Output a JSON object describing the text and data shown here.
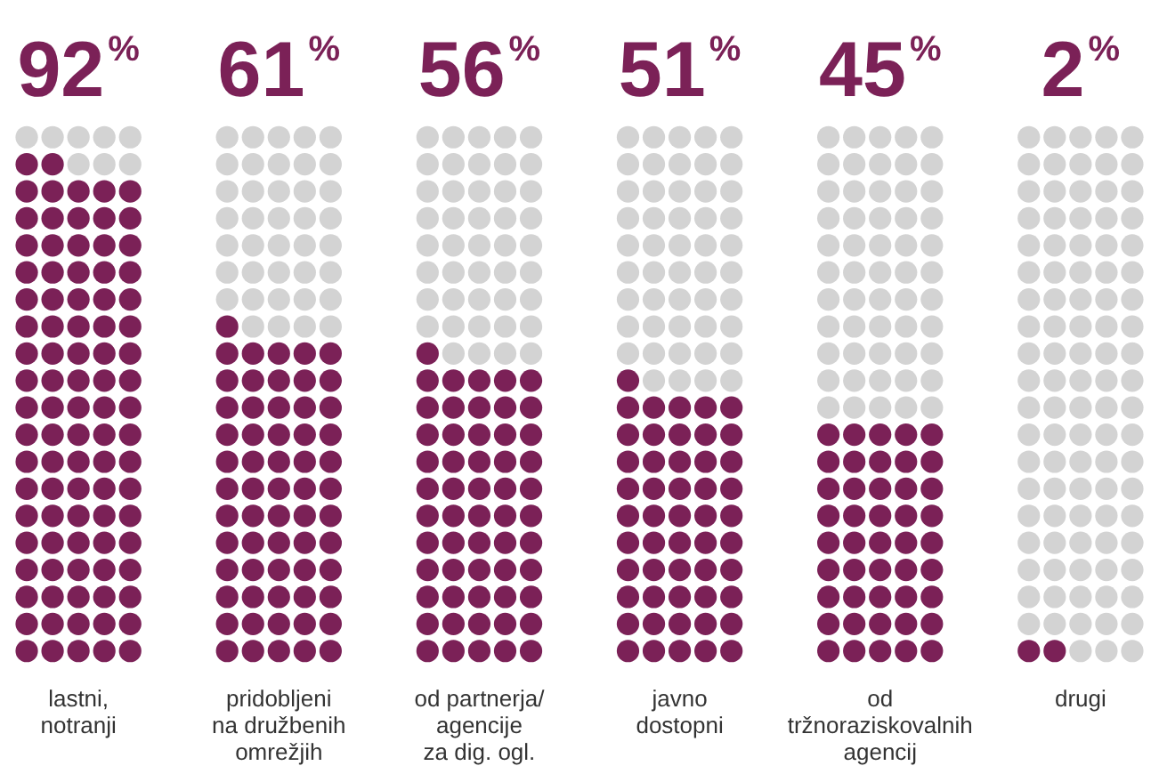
{
  "chart_data": {
    "type": "other",
    "categories": [
      "lastni,\nnotranji",
      "pridobljeni\nna družbenih\nomrežjih",
      "od partnerja/\nagencije\nza dig. ogl.",
      "javno\ndostopni",
      "od\ntržnoraziskovalnih\nagencij",
      "drugi"
    ],
    "series": [
      {
        "color": "#7b2157",
        "values": [
          92,
          61,
          56,
          51,
          45,
          2
        ],
        "value_labels": [
          "92%",
          "61%",
          "56%",
          "51%",
          "45%",
          "2%"
        ]
      }
    ]
  }
}
